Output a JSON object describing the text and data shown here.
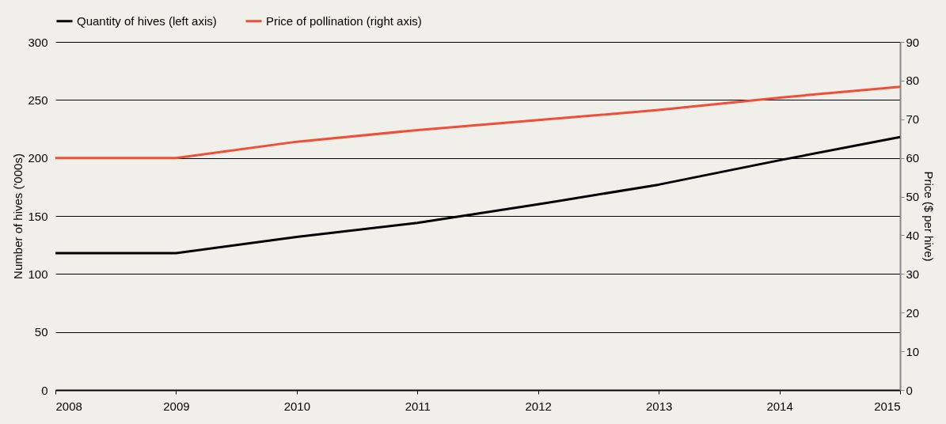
{
  "chart_data": {
    "type": "line",
    "x": [
      2008,
      2009,
      2010,
      2011,
      2012,
      2013,
      2014,
      2015
    ],
    "xlim": [
      2008,
      2015
    ],
    "xticks": [
      2008,
      2009,
      2010,
      2011,
      2012,
      2013,
      2014,
      2015
    ],
    "ylim": [
      0,
      300
    ],
    "yticks": [
      0,
      50,
      100,
      150,
      200,
      250,
      300
    ],
    "y2lim": [
      0,
      90
    ],
    "y2ticks": [
      0,
      10,
      20,
      30,
      40,
      50,
      60,
      70,
      80,
      90
    ],
    "ylabel": "Number of hives ('000s)",
    "y2label": "Price ($ per hive)",
    "grid": "y",
    "legend": "top",
    "marker": "none",
    "line_style": "solid",
    "series": [
      {
        "name": "Quantity of hives (left axis)",
        "color": "#000000",
        "values": [
          118,
          118,
          132,
          144,
          160,
          177,
          198,
          218
        ]
      },
      {
        "name": "Price of pollination (right axis)",
        "color": "#f04e37",
        "axis": "y2",
        "values": [
          60,
          60,
          64.2,
          67.2,
          69.8,
          72.4,
          75.6,
          78.4
        ]
      }
    ]
  }
}
